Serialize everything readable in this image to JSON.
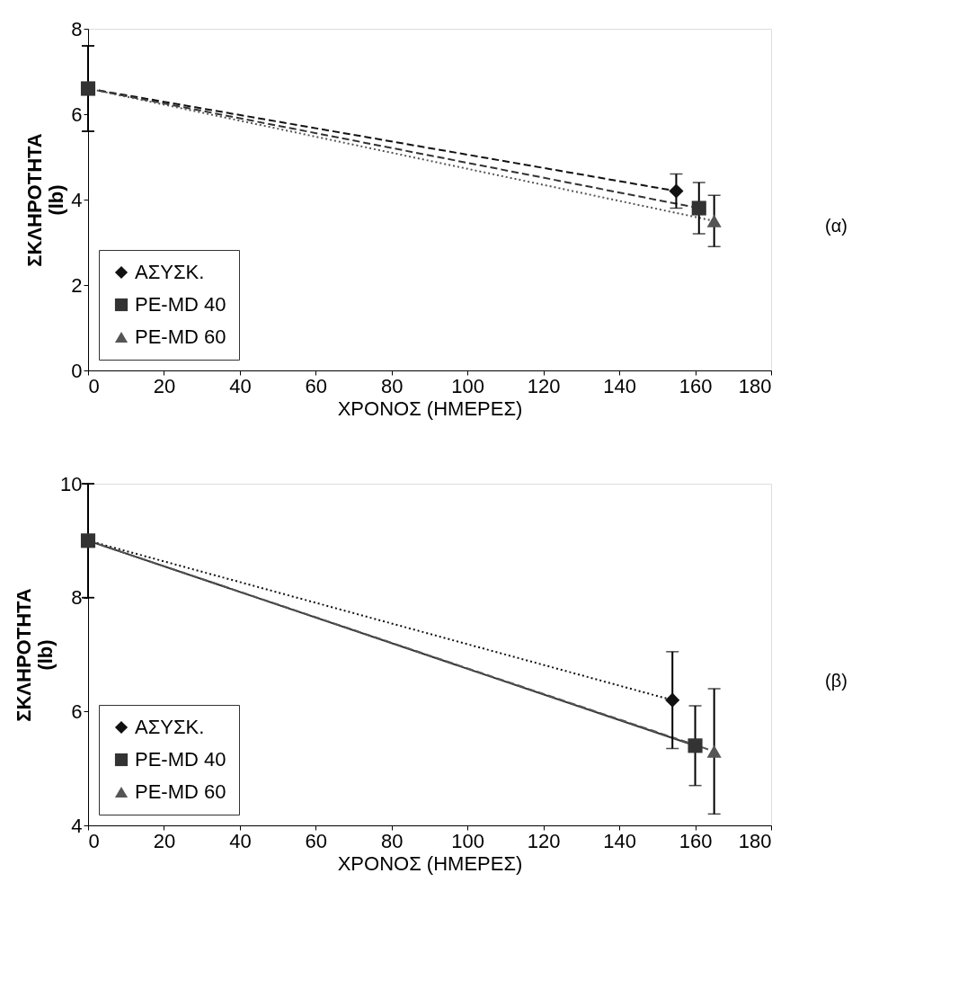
{
  "chart_data": [
    {
      "type": "line",
      "xlabel": "ΧΡΟΝΟΣ (ΗΜΕΡΕΣ)",
      "ylabel": "ΣΚΛΗΡΟΤΗΤΑ\n(lb)",
      "xlim": [
        0,
        180
      ],
      "xticks": [
        0,
        20,
        40,
        60,
        80,
        100,
        120,
        140,
        160,
        180
      ],
      "ylim": [
        0,
        8
      ],
      "yticks": [
        0,
        2,
        4,
        6,
        8
      ],
      "grid": false,
      "legend": "bottom left",
      "annotations": [
        "(α)"
      ],
      "series": [
        {
          "name": "ΑΣΥΣΚ.",
          "color": "#111111",
          "marker": "diamond",
          "line_style": "dashed",
          "x": [
            0,
            155
          ],
          "values": [
            6.6,
            4.2
          ],
          "errors": [
            1.0,
            0.4
          ]
        },
        {
          "name": "PE-MD 40",
          "color": "#333333",
          "marker": "square",
          "line_style": "dashed",
          "x": [
            0,
            161
          ],
          "values": [
            6.6,
            3.8
          ],
          "errors": [
            1.0,
            0.6
          ]
        },
        {
          "name": "PE-MD 60",
          "color": "#555555",
          "marker": "triangle",
          "line_style": "dotted",
          "x": [
            0,
            165
          ],
          "values": [
            6.6,
            3.5
          ],
          "errors": [
            1.0,
            0.6
          ]
        }
      ]
    },
    {
      "type": "line",
      "xlabel": "ΧΡΟΝΟΣ (ΗΜΕΡΕΣ)",
      "ylabel": "ΣΚΛΗΡΟΤΗΤΑ\n(lb)",
      "xlim": [
        0,
        180
      ],
      "xticks": [
        0,
        20,
        40,
        60,
        80,
        100,
        120,
        140,
        160,
        180
      ],
      "ylim": [
        4,
        10
      ],
      "yticks": [
        4,
        6,
        8,
        10
      ],
      "grid": false,
      "legend": "bottom left",
      "annotations": [
        "(β)"
      ],
      "series": [
        {
          "name": "ΑΣΥΣΚ.",
          "color": "#111111",
          "marker": "diamond",
          "line_style": "dotted",
          "x": [
            0,
            154
          ],
          "values": [
            9.0,
            6.2
          ],
          "errors": [
            1.0,
            0.85
          ]
        },
        {
          "name": "PE-MD 40",
          "color": "#333333",
          "marker": "square",
          "line_style": "solid",
          "x": [
            0,
            160
          ],
          "values": [
            9.0,
            5.4
          ],
          "errors": [
            1.0,
            0.7
          ]
        },
        {
          "name": "PE-MD 60",
          "color": "#555555",
          "marker": "triangle",
          "line_style": "dashed",
          "x": [
            0,
            165
          ],
          "values": [
            9.0,
            5.3
          ],
          "errors": [
            1.0,
            1.1
          ]
        }
      ]
    }
  ]
}
